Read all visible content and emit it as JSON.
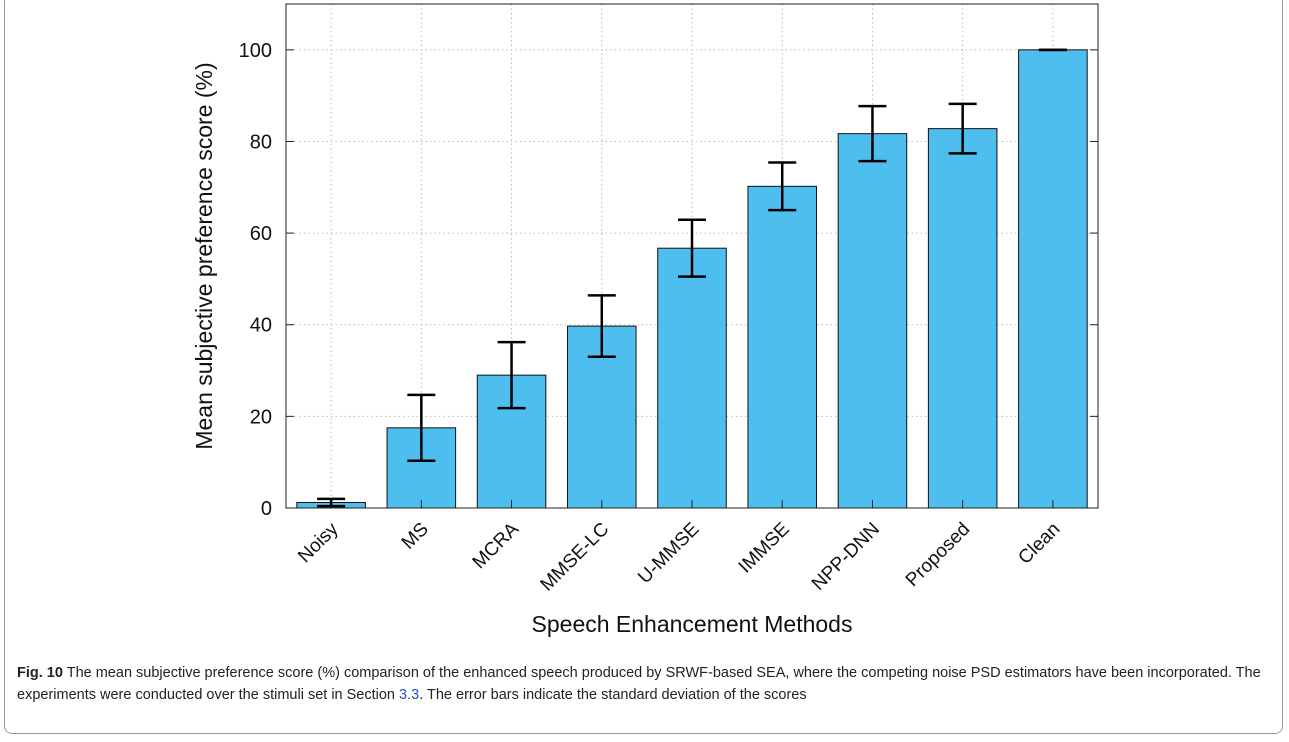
{
  "chart_data": {
    "type": "bar",
    "x_label": "Speech Enhancement Methods",
    "y_label": "Mean subjective preference score (%)",
    "categories": [
      "Noisy",
      "MS",
      "MCRA",
      "MMSE-LC",
      "U-MMSE",
      "IMMSE",
      "NPP-DNN",
      "Proposed",
      "Clean"
    ],
    "values": [
      1.2,
      17.5,
      29,
      39.7,
      56.7,
      70.2,
      81.7,
      82.8,
      100
    ],
    "errors": [
      0.8,
      7.2,
      7.2,
      6.7,
      6.2,
      5.2,
      6,
      5.4,
      0
    ],
    "color": "#4dbeee",
    "ylim": [
      0,
      110
    ],
    "yticks": [
      0,
      20,
      40,
      60,
      80,
      100
    ],
    "grid": true
  },
  "caption": {
    "label": "Fig. 10",
    "text_before": "The mean subjective preference score (%) comparison of the enhanced speech produced by SRWF-based SEA, where the competing noise PSD estimators have been incorporated. The experiments were conducted over the stimuli set in Section ",
    "link": "3.3",
    "text_after": ". The error bars indicate the standard deviation of the scores"
  }
}
